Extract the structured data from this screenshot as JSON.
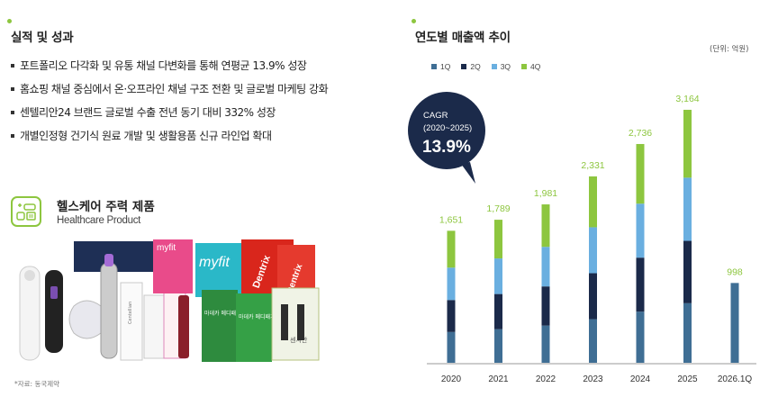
{
  "left": {
    "section_title": "실적 및 성과",
    "bullets": [
      "포트폴리오 다각화 및 유통 채널 다변화를 통해 연평균 13.9% 성장",
      "홈쇼핑 채널 중심에서 온·오프라인 채널 구조 전환 및 글로벌 마케팅 강화",
      "센텔리안24 브랜드 글로벌 수출 전년 동기 대비 332% 성장",
      "개별인정형 건기식 원료 개발 및 생활용품 신규 라인업 확대"
    ],
    "healthcare_title": "헬스케어 주력 제품",
    "healthcare_subtitle": "Healthcare Product",
    "source": "*자료: 동국제약",
    "product_labels": [
      "myfit",
      "myfit",
      "Dentrix",
      "Dentrix",
      "마데카 메디패치",
      "마데카 메디패치",
      "센시안",
      "Centellian"
    ]
  },
  "colors": {
    "accent": "#8dc63f",
    "q1": "#3f6e94",
    "q2": "#1b2a4a",
    "q3": "#6aafe0",
    "q4": "#8dc63f",
    "total_label": "#8dc63f",
    "cagr_bubble": "#1b2a4a"
  },
  "chart_data": {
    "type": "bar",
    "stacked": true,
    "title": "연도별 매출액 추이",
    "unit": "(단위: 억원)",
    "categories": [
      "2020",
      "2021",
      "2022",
      "2023",
      "2024",
      "2025",
      "2026.1Q"
    ],
    "series": [
      {
        "name": "1Q",
        "values": [
          385,
          420,
          465,
          545,
          640,
          745,
          998
        ]
      },
      {
        "name": "2Q",
        "values": [
          400,
          440,
          490,
          575,
          675,
          780,
          0
        ]
      },
      {
        "name": "3Q",
        "values": [
          405,
          445,
          495,
          575,
          675,
          790,
          0
        ]
      },
      {
        "name": "4Q",
        "values": [
          461,
          484,
          531,
          636,
          746,
          849,
          0
        ]
      }
    ],
    "totals": [
      "1,651",
      "1,789",
      "1,981",
      "2,331",
      "2,736",
      "3,164",
      "998"
    ],
    "ylim": [
      0,
      3400
    ],
    "legend_position": "top-left",
    "grid": false,
    "annotation": {
      "line1": "CAGR",
      "line2": "(2020~2025)",
      "value": "13.9%"
    }
  }
}
